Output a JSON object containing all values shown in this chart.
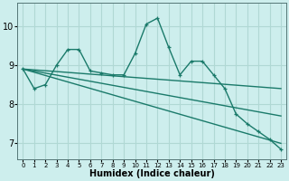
{
  "xlabel": "Humidex (Indice chaleur)",
  "bg_color": "#cdeeed",
  "grid_color": "#b0d8d4",
  "line_color": "#1a7a6a",
  "xlim": [
    -0.5,
    23.5
  ],
  "ylim": [
    6.6,
    10.6
  ],
  "yticks": [
    7,
    8,
    9,
    10
  ],
  "xticks": [
    0,
    1,
    2,
    3,
    4,
    5,
    6,
    7,
    8,
    9,
    10,
    11,
    12,
    13,
    14,
    15,
    16,
    17,
    18,
    19,
    20,
    21,
    22,
    23
  ],
  "series": [
    {
      "x": [
        0,
        1,
        2,
        3,
        4,
        5,
        6,
        7,
        8,
        9,
        10,
        11,
        12,
        13,
        14,
        15,
        16,
        17,
        18,
        19,
        20,
        21,
        22,
        23
      ],
      "y": [
        8.9,
        8.4,
        8.5,
        9.0,
        9.4,
        9.4,
        8.85,
        8.8,
        8.75,
        8.75,
        9.3,
        10.05,
        10.2,
        9.45,
        8.75,
        9.1,
        9.1,
        8.75,
        8.4,
        7.75,
        7.5,
        7.3,
        7.1,
        6.85
      ],
      "marker": true,
      "lw": 1.0
    },
    {
      "x": [
        0,
        23
      ],
      "y": [
        8.9,
        8.4
      ],
      "marker": false,
      "lw": 1.0
    },
    {
      "x": [
        0,
        23
      ],
      "y": [
        8.9,
        7.7
      ],
      "marker": false,
      "lw": 1.0
    },
    {
      "x": [
        0,
        23
      ],
      "y": [
        8.9,
        7.0
      ],
      "marker": false,
      "lw": 1.0
    }
  ]
}
